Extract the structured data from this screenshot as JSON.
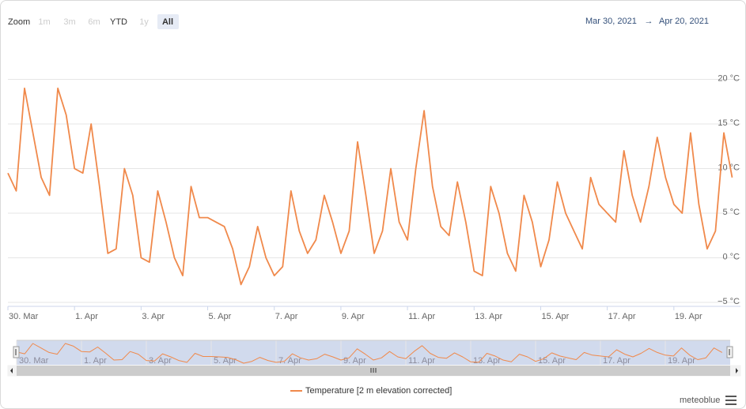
{
  "chart_data": {
    "type": "line",
    "zoom_label": "Zoom",
    "zoom_buttons": [
      "1m",
      "3m",
      "6m",
      "YTD",
      "1y",
      "All"
    ],
    "range_from": "Mar 30, 2021",
    "range_sep": "→",
    "range_to": "Apr 20, 2021",
    "credits": "meteoblue",
    "xlim": [
      "2021-03-30T00:00",
      "2021-04-21T00:00"
    ],
    "xticks": [
      {
        "value": "2021-03-30T00:00",
        "label": "30. Mar"
      },
      {
        "value": "2021-04-01T00:00",
        "label": "1. Apr"
      },
      {
        "value": "2021-04-03T00:00",
        "label": "3. Apr"
      },
      {
        "value": "2021-04-05T00:00",
        "label": "5. Apr"
      },
      {
        "value": "2021-04-07T00:00",
        "label": "7. Apr"
      },
      {
        "value": "2021-04-09T00:00",
        "label": "9. Apr"
      },
      {
        "value": "2021-04-11T00:00",
        "label": "11. Apr"
      },
      {
        "value": "2021-04-13T00:00",
        "label": "13. Apr"
      },
      {
        "value": "2021-04-15T00:00",
        "label": "15. Apr"
      },
      {
        "value": "2021-04-17T00:00",
        "label": "17. Apr"
      },
      {
        "value": "2021-04-19T00:00",
        "label": "19. Apr"
      }
    ],
    "ylim": [
      -5,
      25
    ],
    "yticks": [
      {
        "value": -5,
        "label": "−5 °C"
      },
      {
        "value": 0,
        "label": "0 °C"
      },
      {
        "value": 5,
        "label": "5 °C"
      },
      {
        "value": 10,
        "label": "10 °C"
      },
      {
        "value": 15,
        "label": "15 °C"
      },
      {
        "value": 20,
        "label": "20 °C"
      }
    ],
    "grid": true,
    "x": [
      "2021-03-30T00:00",
      "2021-03-30T06:00",
      "2021-03-30T12:00",
      "2021-03-30T18:00",
      "2021-03-31T00:00",
      "2021-03-31T06:00",
      "2021-03-31T12:00",
      "2021-03-31T18:00",
      "2021-04-01T00:00",
      "2021-04-01T06:00",
      "2021-04-01T12:00",
      "2021-04-01T18:00",
      "2021-04-02T00:00",
      "2021-04-02T06:00",
      "2021-04-02T12:00",
      "2021-04-02T18:00",
      "2021-04-03T00:00",
      "2021-04-03T06:00",
      "2021-04-03T12:00",
      "2021-04-03T18:00",
      "2021-04-04T00:00",
      "2021-04-04T06:00",
      "2021-04-04T12:00",
      "2021-04-04T18:00",
      "2021-04-05T00:00",
      "2021-04-05T06:00",
      "2021-04-05T12:00",
      "2021-04-05T18:00",
      "2021-04-06T00:00",
      "2021-04-06T06:00",
      "2021-04-06T12:00",
      "2021-04-06T18:00",
      "2021-04-07T00:00",
      "2021-04-07T06:00",
      "2021-04-07T12:00",
      "2021-04-07T18:00",
      "2021-04-08T00:00",
      "2021-04-08T06:00",
      "2021-04-08T12:00",
      "2021-04-08T18:00",
      "2021-04-09T00:00",
      "2021-04-09T06:00",
      "2021-04-09T12:00",
      "2021-04-09T18:00",
      "2021-04-10T00:00",
      "2021-04-10T06:00",
      "2021-04-10T12:00",
      "2021-04-10T18:00",
      "2021-04-11T00:00",
      "2021-04-11T06:00",
      "2021-04-11T12:00",
      "2021-04-11T18:00",
      "2021-04-12T00:00",
      "2021-04-12T06:00",
      "2021-04-12T12:00",
      "2021-04-12T18:00",
      "2021-04-13T00:00",
      "2021-04-13T06:00",
      "2021-04-13T12:00",
      "2021-04-13T18:00",
      "2021-04-14T00:00",
      "2021-04-14T06:00",
      "2021-04-14T12:00",
      "2021-04-14T18:00",
      "2021-04-15T00:00",
      "2021-04-15T06:00",
      "2021-04-15T12:00",
      "2021-04-15T18:00",
      "2021-04-16T00:00",
      "2021-04-16T06:00",
      "2021-04-16T12:00",
      "2021-04-16T18:00",
      "2021-04-17T00:00",
      "2021-04-17T06:00",
      "2021-04-17T12:00",
      "2021-04-17T18:00",
      "2021-04-18T00:00",
      "2021-04-18T06:00",
      "2021-04-18T12:00",
      "2021-04-18T18:00",
      "2021-04-19T00:00",
      "2021-04-19T06:00",
      "2021-04-19T12:00",
      "2021-04-19T18:00",
      "2021-04-20T00:00",
      "2021-04-20T06:00",
      "2021-04-20T12:00",
      "2021-04-20T18:00"
    ],
    "series": [
      {
        "name": "Temperature [2 m elevation corrected]",
        "color": "#f0894b",
        "values": [
          9.5,
          7.5,
          19,
          14,
          9,
          7,
          19,
          16,
          10,
          9.5,
          15,
          8,
          0.5,
          1,
          10,
          7,
          0,
          -0.5,
          7.5,
          4,
          0,
          -2,
          8,
          4.5,
          4.5,
          4,
          3.5,
          1,
          -3,
          -1,
          3.5,
          0,
          -2,
          -1,
          7.5,
          3,
          0.5,
          2,
          7,
          4,
          0.5,
          3,
          13,
          7,
          0.5,
          3,
          10,
          4,
          2,
          10,
          16.5,
          8,
          3.5,
          2.5,
          8.5,
          4,
          -1.5,
          -2,
          8,
          5,
          0.5,
          -1.5,
          7,
          4,
          -1,
          2,
          8.5,
          5,
          3,
          1,
          9,
          6,
          5,
          4,
          12,
          7,
          4,
          8,
          13.5,
          9,
          6,
          5,
          14,
          6,
          1,
          3,
          14,
          9
        ]
      }
    ]
  }
}
